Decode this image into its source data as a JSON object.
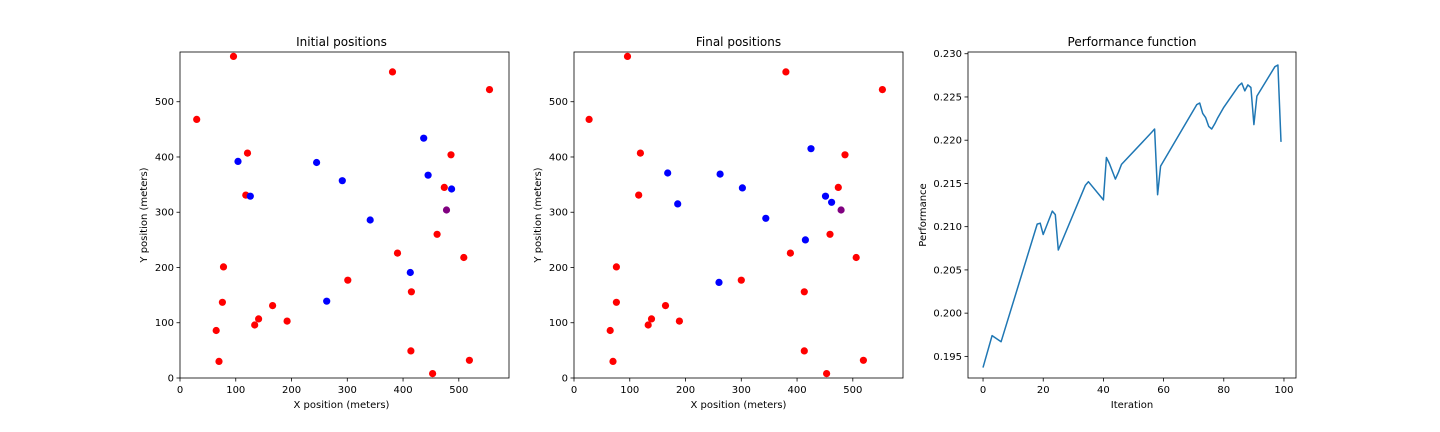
{
  "charts": [
    {
      "title": "Initial positions",
      "xlabel": "X position (meters)",
      "ylabel": "Y position (meters)"
    },
    {
      "title": "Final positions",
      "xlabel": "X position (meters)",
      "ylabel": "Y position (meters)"
    },
    {
      "title": "Performance function",
      "xlabel": "Iteration",
      "ylabel": "Performance"
    }
  ],
  "chart_data": [
    {
      "type": "scatter",
      "title": "Initial positions",
      "xlabel": "X position (meters)",
      "ylabel": "Y position (meters)",
      "xlim": [
        0,
        590
      ],
      "ylim": [
        0,
        590
      ],
      "xticks": [
        0,
        100,
        200,
        300,
        400,
        500
      ],
      "yticks": [
        0,
        100,
        200,
        300,
        400,
        500
      ],
      "grid": false,
      "series": [
        {
          "color": "#ff0000",
          "points": [
            [
              30,
              468
            ],
            [
              96,
              582
            ],
            [
              381,
              554
            ],
            [
              555,
              522
            ],
            [
              121,
              407
            ],
            [
              486,
              404
            ],
            [
              118,
              331
            ],
            [
              474,
              345
            ],
            [
              390,
              226
            ],
            [
              461,
              260
            ],
            [
              78,
              201
            ],
            [
              509,
              218
            ],
            [
              301,
              177
            ],
            [
              415,
              156
            ],
            [
              166,
              131
            ],
            [
              76,
              137
            ],
            [
              141,
              107
            ],
            [
              192,
              103
            ],
            [
              134,
              96
            ],
            [
              65,
              86
            ],
            [
              70,
              30
            ],
            [
              414,
              49
            ],
            [
              519,
              32
            ],
            [
              453,
              8
            ]
          ]
        },
        {
          "color": "#0000ff",
          "points": [
            [
              104,
              392
            ],
            [
              245,
              390
            ],
            [
              437,
              434
            ],
            [
              291,
              357
            ],
            [
              445,
              367
            ],
            [
              487,
              342
            ],
            [
              126,
              329
            ],
            [
              341,
              286
            ],
            [
              413,
              191
            ],
            [
              263,
              139
            ]
          ]
        },
        {
          "color": "#800080",
          "points": [
            [
              478,
              304
            ]
          ]
        }
      ]
    },
    {
      "type": "scatter",
      "title": "Final positions",
      "xlabel": "X position (meters)",
      "ylabel": "Y position (meters)",
      "xlim": [
        0,
        590
      ],
      "ylim": [
        0,
        590
      ],
      "xticks": [
        0,
        100,
        200,
        300,
        400,
        500
      ],
      "yticks": [
        0,
        100,
        200,
        300,
        400,
        500
      ],
      "grid": false,
      "series": [
        {
          "color": "#ff0000",
          "points": [
            [
              27,
              468
            ],
            [
              96,
              582
            ],
            [
              380,
              554
            ],
            [
              553,
              522
            ],
            [
              119,
              407
            ],
            [
              486,
              404
            ],
            [
              116,
              331
            ],
            [
              474,
              345
            ],
            [
              388,
              226
            ],
            [
              459,
              260
            ],
            [
              76,
              201
            ],
            [
              506,
              218
            ],
            [
              300,
              177
            ],
            [
              413,
              156
            ],
            [
              164,
              131
            ],
            [
              76,
              137
            ],
            [
              139,
              107
            ],
            [
              189,
              103
            ],
            [
              133,
              96
            ],
            [
              65,
              86
            ],
            [
              70,
              30
            ],
            [
              413,
              49
            ],
            [
              519,
              32
            ],
            [
              453,
              8
            ]
          ]
        },
        {
          "color": "#0000ff",
          "points": [
            [
              168,
              371
            ],
            [
              262,
              369
            ],
            [
              425,
              415
            ],
            [
              302,
              344
            ],
            [
              451,
              329
            ],
            [
              462,
              318
            ],
            [
              186,
              315
            ],
            [
              344,
              289
            ],
            [
              415,
              250
            ],
            [
              260,
              173
            ]
          ]
        },
        {
          "color": "#800080",
          "points": [
            [
              479,
              304
            ]
          ]
        }
      ]
    },
    {
      "type": "line",
      "title": "Performance function",
      "xlabel": "Iteration",
      "ylabel": "Performance",
      "xlim": [
        -5,
        104
      ],
      "ylim": [
        0.1925,
        0.2302
      ],
      "xticks": [
        0,
        20,
        40,
        60,
        80,
        100
      ],
      "yticks": [
        0.195,
        0.2,
        0.205,
        0.21,
        0.215,
        0.22,
        0.225,
        0.23
      ],
      "grid": false,
      "series": [
        {
          "color": "#1f77b4",
          "x": [
            0,
            3,
            6,
            18,
            19,
            20,
            23,
            24,
            25,
            34,
            35,
            40,
            41,
            42,
            44,
            45,
            46,
            56,
            57,
            58,
            59,
            71,
            72,
            73,
            74,
            75,
            76,
            77,
            78,
            79,
            80,
            85,
            86,
            87,
            88,
            89,
            90,
            91,
            97,
            98,
            99
          ],
          "y": [
            0.1937,
            0.1974,
            0.1967,
            0.2103,
            0.2104,
            0.2091,
            0.2118,
            0.2114,
            0.2073,
            0.2148,
            0.2152,
            0.2131,
            0.218,
            0.2173,
            0.2155,
            0.2163,
            0.2172,
            0.2209,
            0.2213,
            0.2137,
            0.217,
            0.2241,
            0.2243,
            0.2231,
            0.2226,
            0.2216,
            0.2213,
            0.2219,
            0.2226,
            0.2232,
            0.2238,
            0.2263,
            0.2266,
            0.2257,
            0.2264,
            0.2261,
            0.2218,
            0.2251,
            0.2285,
            0.2287,
            0.2198
          ]
        }
      ]
    }
  ]
}
